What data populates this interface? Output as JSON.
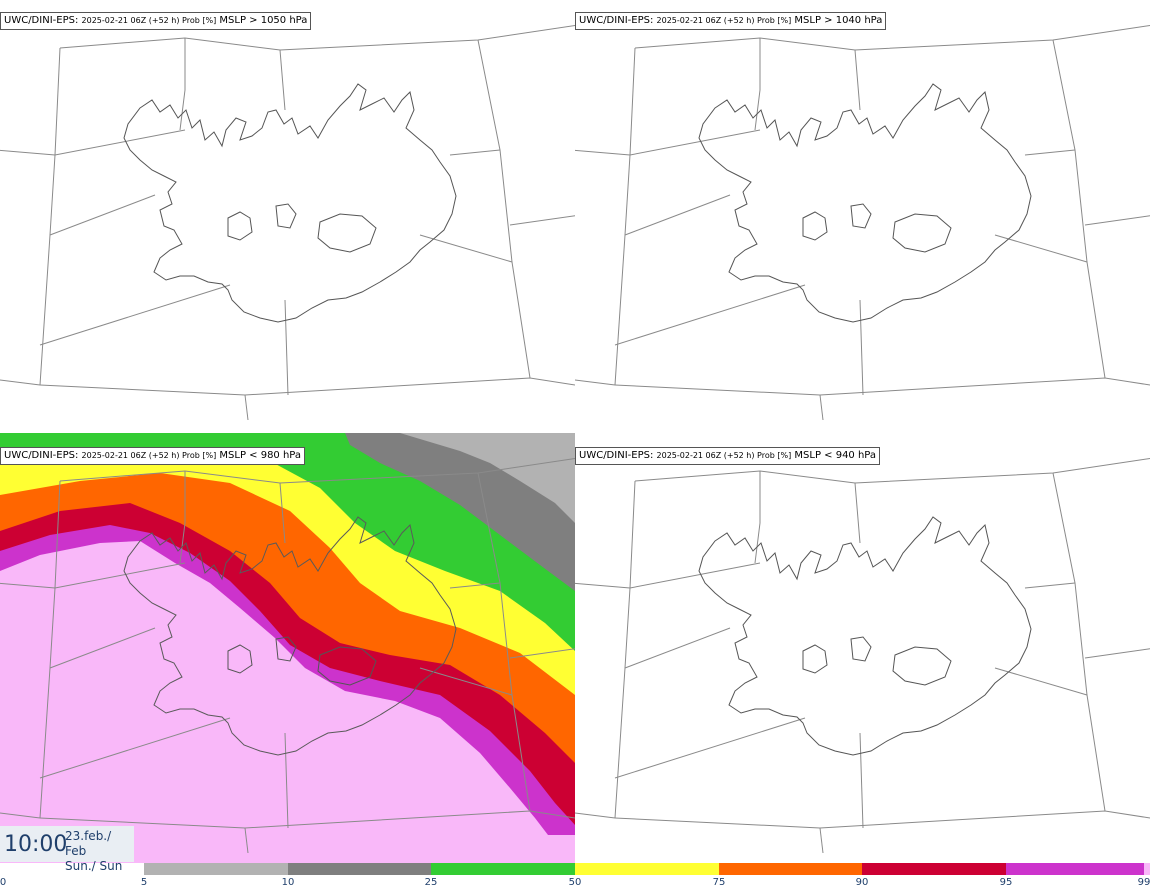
{
  "panels": [
    {
      "model": "UWC/DINI-EPS",
      "run": "2025-02-21 06Z (+52 h) Prob [%]",
      "field": "MSLP > 1050 hPa",
      "filled": false
    },
    {
      "model": "UWC/DINI-EPS",
      "run": "2025-02-21 06Z (+52 h) Prob [%]",
      "field": "MSLP > 1040 hPa",
      "filled": false
    },
    {
      "model": "UWC/DINI-EPS",
      "run": "2025-02-21 06Z (+52 h) Prob [%]",
      "field": "MSLP < 980 hPa",
      "filled": true
    },
    {
      "model": "UWC/DINI-EPS",
      "run": "2025-02-21 06Z (+52 h) Prob [%]",
      "field": "MSLP < 940 hPa",
      "filled": false
    }
  ],
  "valid_time": {
    "time": "10:00",
    "date_line1": "23.feb./ Feb",
    "date_line2": "Sun./ Sun"
  },
  "colorbar": {
    "ticks": [
      "0",
      "5",
      "10",
      "25",
      "50",
      "75",
      "90",
      "95",
      "99"
    ],
    "bins": [
      {
        "from": 5,
        "to": 10,
        "color": "#b2b2b2"
      },
      {
        "from": 10,
        "to": 25,
        "color": "#7f7f7f"
      },
      {
        "from": 25,
        "to": 50,
        "color": "#33cc33"
      },
      {
        "from": 50,
        "to": 75,
        "color": "#ffff33"
      },
      {
        "from": 75,
        "to": 90,
        "color": "#ff6600"
      },
      {
        "from": 90,
        "to": 95,
        "color": "#cc0033"
      },
      {
        "from": 95,
        "to": 99,
        "color": "#cc33cc"
      },
      {
        "from": 99,
        "to": 100,
        "color": "#f9b8f9"
      }
    ]
  }
}
